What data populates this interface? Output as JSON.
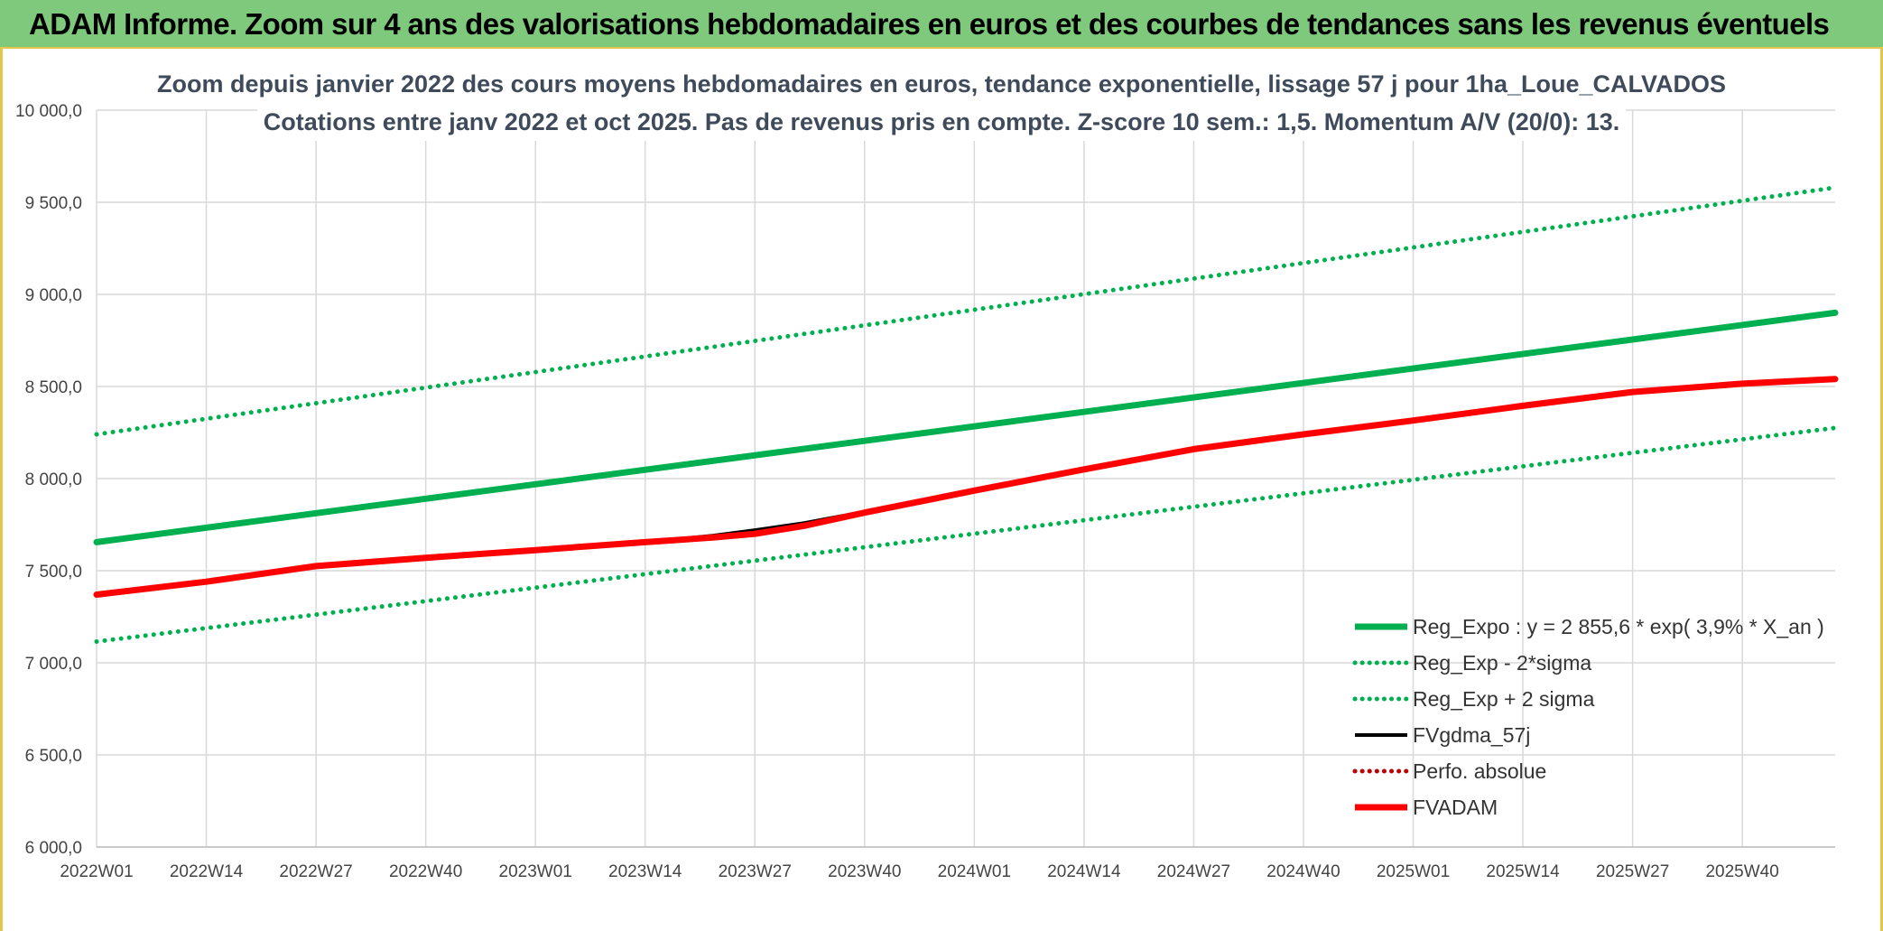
{
  "banner": {
    "title": "ADAM Informe. Zoom sur 4 ans des valorisations hebdomadaires en euros et des courbes de tendances sans les revenus éventuels"
  },
  "colors": {
    "banner_bg": "#7ec97b",
    "banner_border": "#e7c54a",
    "grid": "#d9d9d9",
    "green": "#00b050",
    "red": "#ff0000",
    "black": "#000000",
    "dark_red": "#c00000"
  },
  "chart_data": {
    "type": "line",
    "title_lines": [
      "Zoom depuis janvier 2022 des cours moyens hebdomadaires en euros, tendance exponentielle, lissage 57 j pour 1ha_Loue_CALVADOS",
      "Cotations entre janv 2022 et oct 2025. Pas de revenus pris en compte. Z-score 10 sem.: 1,5. Momentum A/V (20/0): 13."
    ],
    "x_tick_labels": [
      "2022W01",
      "2022W14",
      "2022W27",
      "2022W40",
      "2023W01",
      "2023W14",
      "2023W27",
      "2023W40",
      "2024W01",
      "2024W14",
      "2024W27",
      "2024W40",
      "2025W01",
      "2025W14",
      "2025W27",
      "2025W40"
    ],
    "x_range_weeks": [
      0,
      206
    ],
    "y_tick_labels": [
      "10 000,0",
      "9 500,0",
      "9 000,0",
      "8 500,0",
      "8 000,0",
      "7 500,0",
      "7 000,0",
      "6 500,0",
      "6 000,0"
    ],
    "ylim": [
      6000,
      10000
    ],
    "grid": true,
    "legend_position": "bottom-right",
    "series": [
      {
        "name": "Reg_Expo : y = 2 855,6 * exp( 3,9% *  X_an )",
        "style": "solid-thick",
        "color": "#00b050",
        "points": [
          [
            0,
            7655
          ],
          [
            206,
            8900
          ]
        ]
      },
      {
        "name": "Reg_Exp - 2*sigma",
        "style": "dotted",
        "color": "#00b050",
        "points": [
          [
            0,
            7115
          ],
          [
            206,
            8275
          ]
        ]
      },
      {
        "name": "Reg_Exp + 2 sigma",
        "style": "dotted",
        "color": "#00b050",
        "points": [
          [
            0,
            8240
          ],
          [
            206,
            9580
          ]
        ]
      },
      {
        "name": "FVgdma_57j",
        "style": "solid",
        "color": "#000000",
        "points": [
          [
            0,
            7370
          ],
          [
            13,
            7440
          ],
          [
            26,
            7525
          ],
          [
            39,
            7570
          ],
          [
            52,
            7612
          ],
          [
            65,
            7655
          ],
          [
            73,
            7690
          ],
          [
            78,
            7720
          ],
          [
            84,
            7760
          ],
          [
            91,
            7820
          ],
          [
            104,
            7935
          ],
          [
            117,
            8050
          ],
          [
            130,
            8160
          ],
          [
            143,
            8240
          ],
          [
            156,
            8315
          ],
          [
            169,
            8395
          ],
          [
            182,
            8470
          ],
          [
            195,
            8515
          ],
          [
            206,
            8540
          ]
        ]
      },
      {
        "name": "Perfo. absolue",
        "style": "dotted",
        "color": "#c00000",
        "points": []
      },
      {
        "name": "FVADAM",
        "style": "solid-thick",
        "color": "#ff0000",
        "points": [
          [
            0,
            7370
          ],
          [
            13,
            7440
          ],
          [
            26,
            7525
          ],
          [
            39,
            7570
          ],
          [
            52,
            7612
          ],
          [
            65,
            7655
          ],
          [
            73,
            7680
          ],
          [
            78,
            7700
          ],
          [
            84,
            7745
          ],
          [
            91,
            7815
          ],
          [
            104,
            7935
          ],
          [
            117,
            8050
          ],
          [
            130,
            8160
          ],
          [
            143,
            8240
          ],
          [
            156,
            8315
          ],
          [
            169,
            8395
          ],
          [
            182,
            8470
          ],
          [
            195,
            8515
          ],
          [
            206,
            8540
          ]
        ]
      }
    ]
  }
}
